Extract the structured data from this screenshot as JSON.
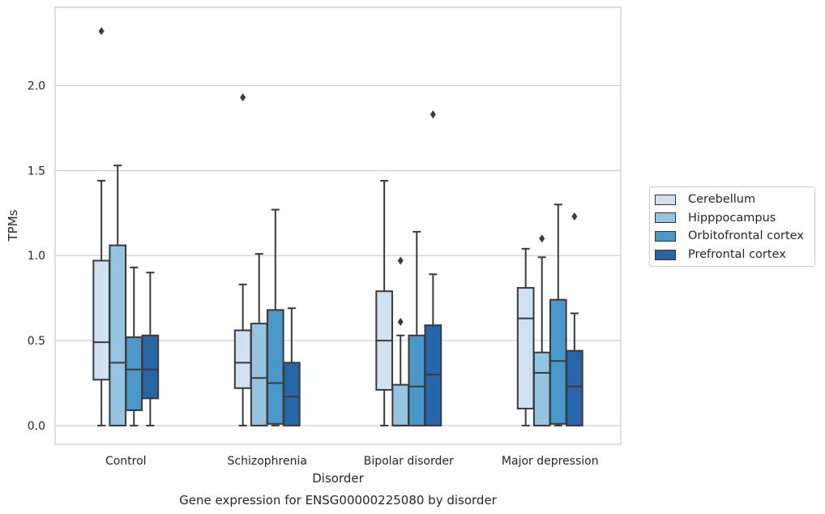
{
  "chart_data": {
    "type": "box",
    "title": "Gene expression for ENSG00000225080 by disorder",
    "xlabel": "Disorder",
    "ylabel": "TPMs",
    "ylim": [
      -0.11,
      2.46
    ],
    "yticks": [
      "0.0",
      "0.5",
      "1.0",
      "1.5",
      "2.0"
    ],
    "grid": "horizontal",
    "legend_position": "right",
    "categories": [
      "Control",
      "Schizophrenia",
      "Bipolar disorder",
      "Major depression"
    ],
    "series": [
      {
        "name": "Cerebellum",
        "color": "#d0e1f2",
        "boxes": [
          {
            "whislo": 0.0,
            "q1": 0.27,
            "med": 0.49,
            "q3": 0.97,
            "whishi": 1.44,
            "fliers": [
              2.32
            ]
          },
          {
            "whislo": 0.0,
            "q1": 0.22,
            "med": 0.37,
            "q3": 0.56,
            "whishi": 0.83,
            "fliers": [
              1.93
            ]
          },
          {
            "whislo": 0.0,
            "q1": 0.21,
            "med": 0.5,
            "q3": 0.79,
            "whishi": 1.44,
            "fliers": []
          },
          {
            "whislo": 0.0,
            "q1": 0.1,
            "med": 0.63,
            "q3": 0.81,
            "whishi": 1.04,
            "fliers": []
          }
        ]
      },
      {
        "name": "Hipppocampus",
        "color": "#94c4df",
        "boxes": [
          {
            "whislo": 0.0,
            "q1": 0.0,
            "med": 0.37,
            "q3": 1.06,
            "whishi": 1.53,
            "fliers": []
          },
          {
            "whislo": 0.0,
            "q1": 0.0,
            "med": 0.28,
            "q3": 0.6,
            "whishi": 1.01,
            "fliers": []
          },
          {
            "whislo": 0.0,
            "q1": 0.0,
            "med": 0.0,
            "q3": 0.24,
            "whishi": 0.53,
            "fliers": [
              0.61,
              0.97
            ]
          },
          {
            "whislo": 0.0,
            "q1": 0.0,
            "med": 0.31,
            "q3": 0.43,
            "whishi": 0.99,
            "fliers": [
              1.1
            ]
          }
        ]
      },
      {
        "name": "Orbitofrontal cortex",
        "color": "#4a98c9",
        "boxes": [
          {
            "whislo": 0.0,
            "q1": 0.09,
            "med": 0.33,
            "q3": 0.52,
            "whishi": 0.93,
            "fliers": []
          },
          {
            "whislo": 0.0,
            "q1": 0.01,
            "med": 0.25,
            "q3": 0.68,
            "whishi": 1.27,
            "fliers": []
          },
          {
            "whislo": 0.0,
            "q1": 0.0,
            "med": 0.23,
            "q3": 0.53,
            "whishi": 1.14,
            "fliers": []
          },
          {
            "whislo": 0.0,
            "q1": 0.01,
            "med": 0.38,
            "q3": 0.74,
            "whishi": 1.3,
            "fliers": []
          }
        ]
      },
      {
        "name": "Prefrontal cortex",
        "color": "#2565a8",
        "boxes": [
          {
            "whislo": 0.0,
            "q1": 0.16,
            "med": 0.33,
            "q3": 0.53,
            "whishi": 0.9,
            "fliers": []
          },
          {
            "whislo": 0.0,
            "q1": 0.0,
            "med": 0.17,
            "q3": 0.37,
            "whishi": 0.69,
            "fliers": []
          },
          {
            "whislo": 0.0,
            "q1": 0.0,
            "med": 0.3,
            "q3": 0.59,
            "whishi": 0.89,
            "fliers": [
              1.83
            ]
          },
          {
            "whislo": 0.0,
            "q1": 0.0,
            "med": 0.23,
            "q3": 0.44,
            "whishi": 0.66,
            "fliers": [
              1.23
            ]
          }
        ]
      }
    ],
    "colors": {
      "grid": "#cccccc",
      "axes": "#cccccc",
      "box_edge": "#3a3a3a",
      "text": "#262626"
    }
  }
}
